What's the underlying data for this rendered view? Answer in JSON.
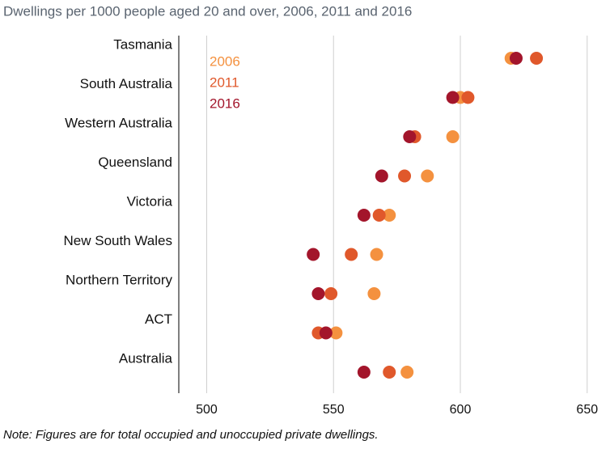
{
  "chart_data": {
    "type": "dot",
    "title": "Dwellings per 1000 people aged 20 and over, 2006, 2011 and 2016",
    "note": "Note: Figures are for total occupied and unoccupied private dwellings.",
    "categories": [
      "Tasmania",
      "South Australia",
      "Western Australia",
      "Queensland",
      "Victoria",
      "New South Wales",
      "Northern Territory",
      "ACT",
      "Australia"
    ],
    "series": [
      {
        "name": "2006",
        "color": "#f4913f",
        "values": [
          620,
          600,
          597,
          587,
          572,
          567,
          566,
          551,
          579
        ]
      },
      {
        "name": "2011",
        "color": "#e0582b",
        "values": [
          630,
          603,
          582,
          578,
          568,
          557,
          549,
          544,
          572
        ]
      },
      {
        "name": "2016",
        "color": "#a3152b",
        "values": [
          622,
          597,
          580,
          569,
          562,
          542,
          544,
          547,
          562
        ]
      }
    ],
    "xlim": [
      489,
      659
    ],
    "xticks": [
      500,
      550,
      600,
      650
    ],
    "grid": true
  }
}
